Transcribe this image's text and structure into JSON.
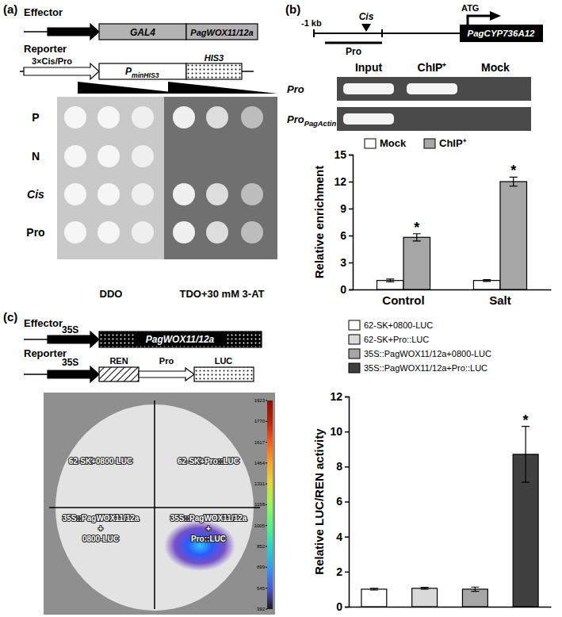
{
  "panel_a": {
    "label": "(a)",
    "effector": {
      "title": "Effector",
      "parts": [
        "GAL4",
        "PagWOX11/12a"
      ]
    },
    "reporter": {
      "title": "Reporter",
      "promoter": "3×Cis/Pro",
      "minimal": {
        "main": "P",
        "sub": "minHIS3"
      },
      "gene": "HIS3"
    },
    "rows": [
      {
        "label": "P",
        "ddo": [
          true,
          true,
          true
        ],
        "tdo": [
          true,
          true,
          true
        ]
      },
      {
        "label": "N",
        "ddo": [
          true,
          true,
          true
        ],
        "tdo": [
          false,
          false,
          false
        ]
      },
      {
        "label": "Cis",
        "ddo": [
          true,
          true,
          true
        ],
        "tdo": [
          true,
          true,
          true
        ]
      },
      {
        "label": "Pro",
        "ddo": [
          true,
          true,
          true
        ],
        "tdo": [
          true,
          true,
          true
        ]
      }
    ],
    "media": [
      "DDO",
      "TDO+30 mM 3-AT"
    ]
  },
  "panel_b": {
    "label": "(b)",
    "promoter": {
      "distance": "-1 kb",
      "element": "Cis",
      "fragment": "Pro",
      "start": "ATG",
      "gene": "PagCYP736A12"
    },
    "gel": {
      "columns": [
        "Input",
        "ChIP⁺",
        "Mock"
      ],
      "rows": [
        {
          "label": {
            "main": "Pro"
          },
          "bands": [
            true,
            true,
            false
          ]
        },
        {
          "label": {
            "main": "Pro",
            "sub": "PagActin"
          },
          "bands": [
            true,
            false,
            false
          ]
        }
      ]
    }
  },
  "panel_c": {
    "label": "(c)",
    "effector": {
      "title": "Effector",
      "promoter": "35S",
      "gene": "PagWOX11/12a"
    },
    "reporter": {
      "title": "Reporter",
      "promoter": "35S",
      "parts": [
        "REN",
        "Pro",
        "LUC"
      ]
    },
    "leaf": {
      "quadrants": [
        [
          "62-SK+0800-LUC"
        ],
        [
          "62-SK+Pro::LUC"
        ],
        [
          "35S::PagWOX11/12a",
          "+",
          "0800-LUC"
        ],
        [
          "35S::PagWOX11/12a",
          "+",
          "Pro::LUC"
        ]
      ],
      "colorbar": {
        "range": [
          392,
          1923
        ],
        "ticks": [
          1923,
          1770,
          1617,
          1464,
          1311,
          1158,
          1005,
          852,
          699,
          545,
          392
        ]
      }
    }
  },
  "chart_data": [
    {
      "type": "bar",
      "y_label": "Relative enrichment",
      "categories": [
        "Control",
        "Salt"
      ],
      "ylim": [
        0,
        15
      ],
      "yticks": [
        0,
        3,
        6,
        9,
        12,
        15
      ],
      "legend": "top",
      "series": [
        {
          "name": "Mock",
          "color": "#ffffff",
          "values": [
            1.0,
            1.0
          ],
          "errors": [
            0.15,
            0.1
          ],
          "significance": [
            null,
            null
          ]
        },
        {
          "name": "ChIP⁺",
          "color": "#a6a6a6",
          "values": [
            5.8,
            12.0
          ],
          "errors": [
            0.4,
            0.5
          ],
          "significance": [
            "*",
            "*"
          ]
        }
      ]
    },
    {
      "type": "bar",
      "y_label": "Relative LUC/REN activity",
      "categories": [
        null
      ],
      "ylim": [
        0,
        12
      ],
      "yticks": [
        0,
        2,
        4,
        6,
        8,
        10,
        12
      ],
      "legend": "top",
      "series": [
        {
          "name": "62-SK+0800-LUC",
          "color": "#ffffff",
          "values": [
            1.0
          ],
          "errors": [
            0.05
          ],
          "significance": [
            null
          ]
        },
        {
          "name": "62-SK+Pro::LUC",
          "color": "#d9d9d9",
          "values": [
            1.05
          ],
          "errors": [
            0.05
          ],
          "significance": [
            null
          ]
        },
        {
          "name": "35S::PagWOX11/12a+0800-LUC",
          "color": "#a6a6a6",
          "values": [
            1.0
          ],
          "errors": [
            0.12
          ],
          "significance": [
            null
          ]
        },
        {
          "name": "35S::PagWOX11/12a+Pro::LUC",
          "color": "#404040",
          "values": [
            8.7
          ],
          "errors": [
            1.6
          ],
          "significance": [
            "*"
          ]
        }
      ]
    }
  ]
}
